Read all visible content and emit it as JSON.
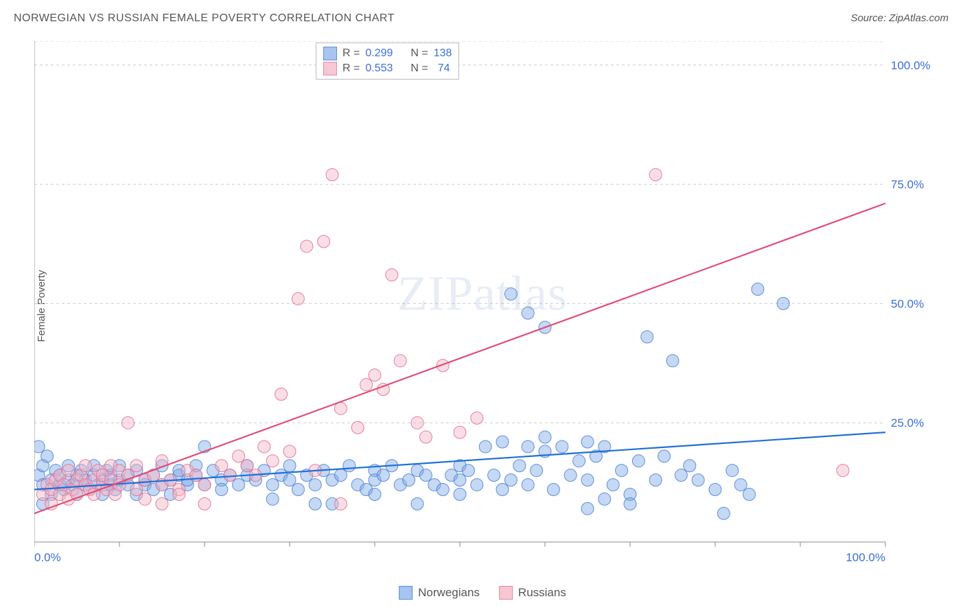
{
  "title": "NORWEGIAN VS RUSSIAN FEMALE POVERTY CORRELATION CHART",
  "source": "Source: ZipAtlas.com",
  "ylabel": "Female Poverty",
  "watermark": "ZIPatlas",
  "chart": {
    "type": "scatter",
    "xlim": [
      0,
      100
    ],
    "ylim": [
      0,
      105
    ],
    "ytick_values": [
      25,
      50,
      75,
      100
    ],
    "ytick_labels": [
      "25.0%",
      "50.0%",
      "75.0%",
      "100.0%"
    ],
    "xtick_minor_step": 10,
    "xtick_labels": [
      {
        "pos": 0,
        "label": "0.0%"
      },
      {
        "pos": 100,
        "label": "100.0%"
      }
    ],
    "background_color": "#ffffff",
    "grid_color": "#cccccc",
    "axis_color": "#888888",
    "tick_label_color": "#3b6fd8",
    "marker_radius": 9,
    "marker_opacity": 0.45,
    "marker_stroke_opacity": 0.9,
    "series": [
      {
        "name": "Norwegians",
        "color": "#7ea8e6",
        "stroke": "#4f84d6",
        "line_color": "#1f6fd8",
        "line_width": 2.2,
        "regression": {
          "x1": 0,
          "y1": 11,
          "x2": 100,
          "y2": 23
        },
        "R": 0.299,
        "N": 138,
        "points": [
          [
            0.5,
            14
          ],
          [
            1,
            16
          ],
          [
            1,
            12
          ],
          [
            1.5,
            18
          ],
          [
            2,
            10
          ],
          [
            2,
            13
          ],
          [
            2.5,
            15
          ],
          [
            3,
            12
          ],
          [
            3,
            14
          ],
          [
            3.5,
            11
          ],
          [
            4,
            13
          ],
          [
            4,
            16
          ],
          [
            4.5,
            12
          ],
          [
            5,
            10
          ],
          [
            5,
            14
          ],
          [
            5.5,
            15
          ],
          [
            6,
            12
          ],
          [
            6,
            13
          ],
          [
            6.5,
            11
          ],
          [
            7,
            14
          ],
          [
            7,
            16
          ],
          [
            7.5,
            12
          ],
          [
            8,
            10
          ],
          [
            8,
            13
          ],
          [
            8.5,
            15
          ],
          [
            9,
            14
          ],
          [
            9,
            12
          ],
          [
            9.5,
            11
          ],
          [
            10,
            13
          ],
          [
            10,
            16
          ],
          [
            11,
            12
          ],
          [
            11,
            14
          ],
          [
            12,
            10
          ],
          [
            12,
            15
          ],
          [
            13,
            13
          ],
          [
            13,
            12
          ],
          [
            14,
            14
          ],
          [
            14,
            11
          ],
          [
            15,
            16
          ],
          [
            15,
            12
          ],
          [
            16,
            13
          ],
          [
            16,
            10
          ],
          [
            17,
            14
          ],
          [
            17,
            15
          ],
          [
            18,
            12
          ],
          [
            18,
            13
          ],
          [
            19,
            14
          ],
          [
            19,
            16
          ],
          [
            20,
            20
          ],
          [
            20,
            12
          ],
          [
            21,
            15
          ],
          [
            22,
            13
          ],
          [
            22,
            11
          ],
          [
            23,
            14
          ],
          [
            24,
            12
          ],
          [
            25,
            16
          ],
          [
            25,
            14
          ],
          [
            26,
            13
          ],
          [
            27,
            15
          ],
          [
            28,
            12
          ],
          [
            29,
            14
          ],
          [
            30,
            16
          ],
          [
            30,
            13
          ],
          [
            31,
            11
          ],
          [
            32,
            14
          ],
          [
            33,
            12
          ],
          [
            34,
            15
          ],
          [
            35,
            13
          ],
          [
            36,
            14
          ],
          [
            37,
            16
          ],
          [
            38,
            12
          ],
          [
            39,
            11
          ],
          [
            40,
            15
          ],
          [
            40,
            13
          ],
          [
            41,
            14
          ],
          [
            42,
            16
          ],
          [
            43,
            12
          ],
          [
            44,
            13
          ],
          [
            45,
            15
          ],
          [
            46,
            14
          ],
          [
            47,
            12
          ],
          [
            48,
            11
          ],
          [
            49,
            14
          ],
          [
            50,
            16
          ],
          [
            50,
            13
          ],
          [
            51,
            15
          ],
          [
            52,
            12
          ],
          [
            53,
            20
          ],
          [
            54,
            14
          ],
          [
            55,
            21
          ],
          [
            56,
            13
          ],
          [
            57,
            16
          ],
          [
            58,
            20
          ],
          [
            58,
            12
          ],
          [
            59,
            15
          ],
          [
            60,
            22
          ],
          [
            60,
            19
          ],
          [
            61,
            11
          ],
          [
            62,
            20
          ],
          [
            63,
            14
          ],
          [
            64,
            17
          ],
          [
            65,
            21
          ],
          [
            65,
            13
          ],
          [
            66,
            18
          ],
          [
            67,
            20
          ],
          [
            68,
            12
          ],
          [
            69,
            15
          ],
          [
            70,
            10
          ],
          [
            71,
            17
          ],
          [
            72,
            43
          ],
          [
            73,
            13
          ],
          [
            56,
            52
          ],
          [
            58,
            48
          ],
          [
            60,
            45
          ],
          [
            74,
            18
          ],
          [
            75,
            38
          ],
          [
            76,
            14
          ],
          [
            77,
            16
          ],
          [
            78,
            13
          ],
          [
            80,
            11
          ],
          [
            81,
            6
          ],
          [
            82,
            15
          ],
          [
            83,
            12
          ],
          [
            84,
            10
          ],
          [
            85,
            53
          ],
          [
            88,
            50
          ],
          [
            65,
            7
          ],
          [
            67,
            9
          ],
          [
            45,
            8
          ],
          [
            50,
            10
          ],
          [
            55,
            11
          ],
          [
            35,
            8
          ],
          [
            40,
            10
          ],
          [
            28,
            9
          ],
          [
            33,
            8
          ],
          [
            0.5,
            20
          ],
          [
            1,
            8
          ],
          [
            70,
            8
          ]
        ]
      },
      {
        "name": "Russians",
        "color": "#f4b6c5",
        "stroke": "#e76f8f",
        "line_color": "#e14d78",
        "line_width": 2.2,
        "regression": {
          "x1": 0,
          "y1": 6,
          "x2": 100,
          "y2": 71
        },
        "R": 0.553,
        "N": 74,
        "points": [
          [
            1,
            10
          ],
          [
            1.5,
            12
          ],
          [
            2,
            8
          ],
          [
            2,
            11
          ],
          [
            2.5,
            13
          ],
          [
            3,
            10
          ],
          [
            3,
            14
          ],
          [
            3.5,
            12
          ],
          [
            4,
            9
          ],
          [
            4,
            15
          ],
          [
            4.5,
            11
          ],
          [
            5,
            13
          ],
          [
            5,
            10
          ],
          [
            5.5,
            14
          ],
          [
            6,
            12
          ],
          [
            6,
            16
          ],
          [
            6.5,
            11
          ],
          [
            7,
            13
          ],
          [
            7,
            10
          ],
          [
            7.5,
            15
          ],
          [
            8,
            12
          ],
          [
            8,
            14
          ],
          [
            8.5,
            11
          ],
          [
            9,
            16
          ],
          [
            9,
            13
          ],
          [
            9.5,
            10
          ],
          [
            10,
            15
          ],
          [
            10,
            12
          ],
          [
            11,
            25
          ],
          [
            11,
            14
          ],
          [
            12,
            11
          ],
          [
            12,
            16
          ],
          [
            13,
            13
          ],
          [
            13,
            9
          ],
          [
            14,
            14
          ],
          [
            15,
            12
          ],
          [
            15,
            17
          ],
          [
            16,
            13
          ],
          [
            17,
            11
          ],
          [
            18,
            15
          ],
          [
            19,
            14
          ],
          [
            20,
            12
          ],
          [
            15,
            8
          ],
          [
            17,
            10
          ],
          [
            20,
            8
          ],
          [
            22,
            16
          ],
          [
            23,
            14
          ],
          [
            24,
            18
          ],
          [
            25,
            16
          ],
          [
            26,
            14
          ],
          [
            27,
            20
          ],
          [
            28,
            17
          ],
          [
            29,
            31
          ],
          [
            30,
            19
          ],
          [
            31,
            51
          ],
          [
            32,
            62
          ],
          [
            34,
            63
          ],
          [
            35,
            77
          ],
          [
            36,
            28
          ],
          [
            38,
            24
          ],
          [
            39,
            33
          ],
          [
            40,
            35
          ],
          [
            41,
            32
          ],
          [
            43,
            38
          ],
          [
            45,
            25
          ],
          [
            42,
            56
          ],
          [
            46,
            22
          ],
          [
            48,
            37
          ],
          [
            50,
            23
          ],
          [
            52,
            26
          ],
          [
            73,
            77
          ],
          [
            95,
            15
          ],
          [
            33,
            15
          ],
          [
            36,
            8
          ]
        ]
      }
    ],
    "legend_bottom": [
      {
        "label": "Norwegians",
        "fill": "#a7c5f0",
        "stroke": "#5a8fd8"
      },
      {
        "label": "Russians",
        "fill": "#f7c7d4",
        "stroke": "#e58aa5"
      }
    ],
    "legend_top": [
      {
        "fill": "#a7c5f0",
        "stroke": "#5a8fd8",
        "R_label": "R =",
        "R": "0.299",
        "N_label": "N =",
        "N": "138"
      },
      {
        "fill": "#f7c7d4",
        "stroke": "#e58aa5",
        "R_label": "R =",
        "R": "0.553",
        "N_label": "N =",
        "N": "74"
      }
    ]
  }
}
